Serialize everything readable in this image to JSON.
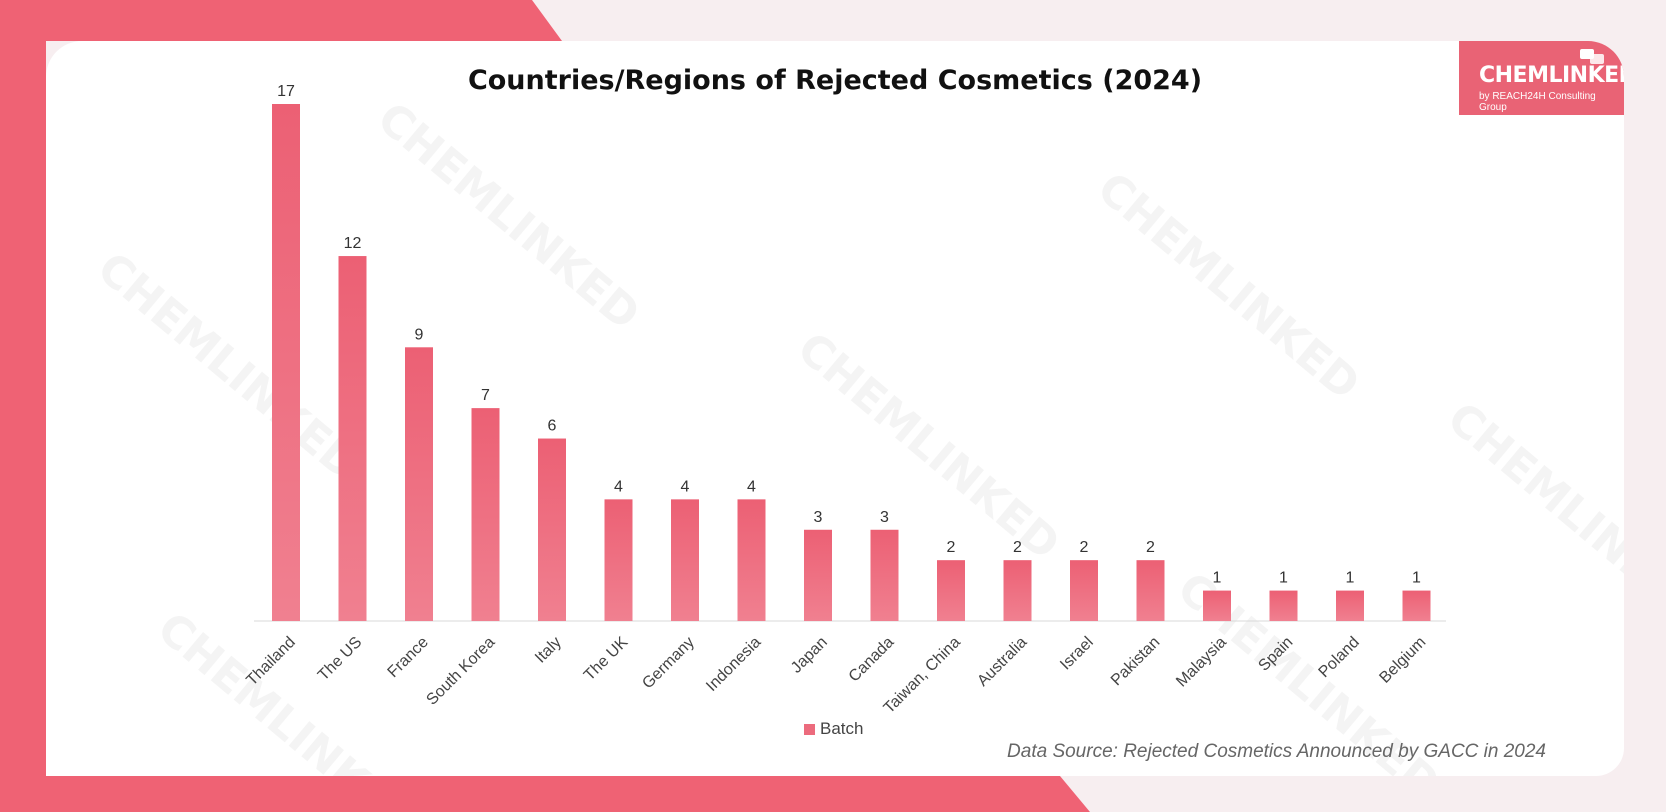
{
  "colors": {
    "accent": "#ef6274",
    "bar": "#ec6b7d",
    "card": "#ffffff"
  },
  "logo": {
    "main": "CHEMLINKED",
    "sub": "by REACH24H Consulting Group"
  },
  "source_note": "Data Source: Rejected Cosmetics Announced by GACC in 2024",
  "chart_data": {
    "type": "bar",
    "title": "Countries/Regions of Rejected Cosmetics (2024)",
    "xlabel": "",
    "ylabel": "",
    "ylim": [
      0,
      17
    ],
    "grid": false,
    "legend": "bottom",
    "categories": [
      "Thailand",
      "The US",
      "France",
      "South Korea",
      "Italy",
      "The UK",
      "Germany",
      "Indonesia",
      "Japan",
      "Canada",
      "Taiwan, China",
      "Australia",
      "Israel",
      "Pakistan",
      "Malaysia",
      "Spain",
      "Poland",
      "Belgium"
    ],
    "series": [
      {
        "name": "Batch",
        "values": [
          17,
          12,
          9,
          7,
          6,
          4,
          4,
          4,
          3,
          3,
          2,
          2,
          2,
          2,
          1,
          1,
          1,
          1
        ]
      }
    ]
  }
}
